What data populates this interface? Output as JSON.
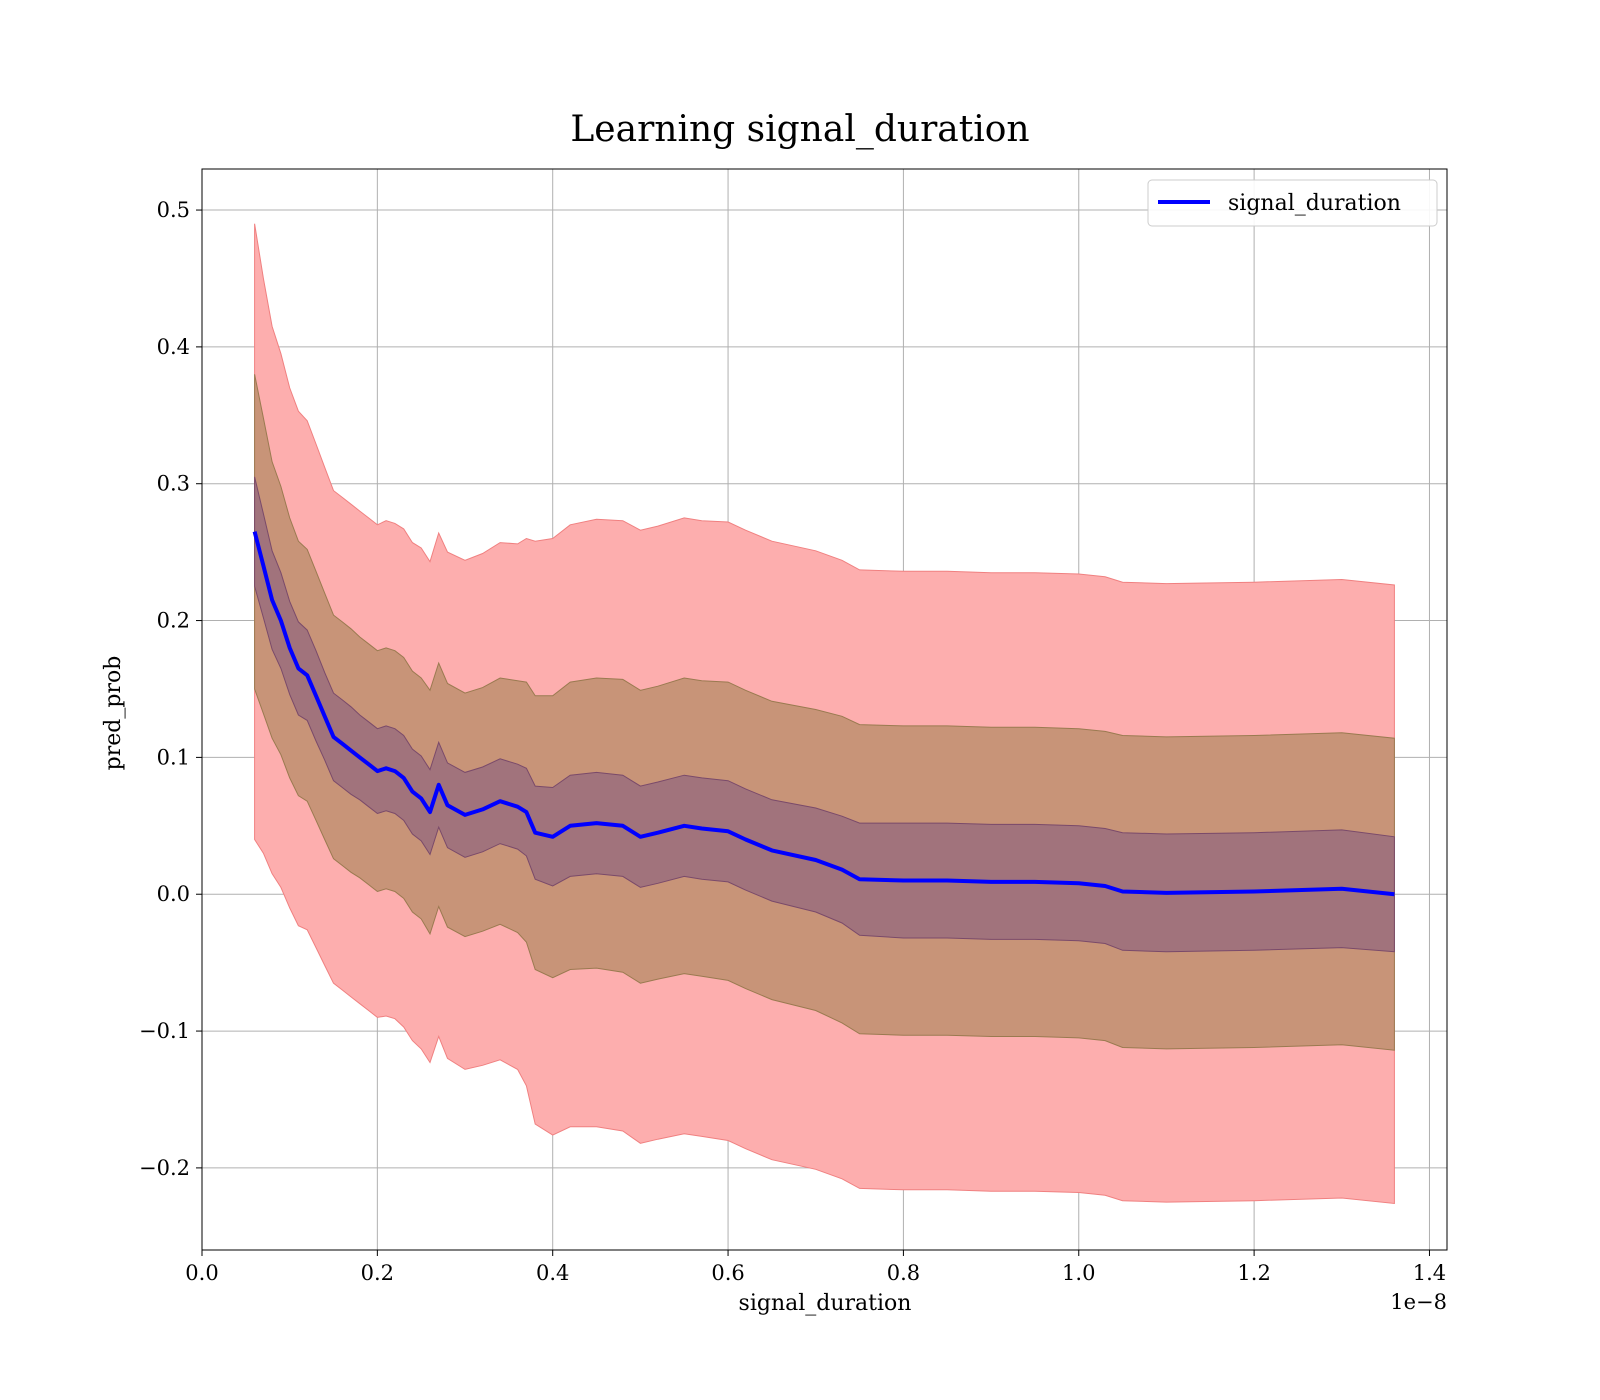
{
  "chart_data": {
    "type": "line",
    "title": "Learning signal_duration",
    "xlabel": "signal_duration",
    "ylabel": "pred_prob",
    "x_offset_label": "1e−8",
    "xlim": [
      0.0,
      1.42
    ],
    "ylim": [
      -0.26,
      0.53
    ],
    "x_ticks": [
      0.0,
      0.2,
      0.4,
      0.6,
      0.8,
      1.0,
      1.2,
      1.4
    ],
    "x_tick_labels": [
      "0.0",
      "0.2",
      "0.4",
      "0.6",
      "0.8",
      "1.0",
      "1.2",
      "1.4"
    ],
    "y_ticks": [
      -0.2,
      -0.1,
      0.0,
      0.1,
      0.2,
      0.3,
      0.4,
      0.5
    ],
    "y_tick_labels": [
      "−0.2",
      "−0.1",
      "0.0",
      "0.1",
      "0.2",
      "0.3",
      "0.4",
      "0.5"
    ],
    "grid": true,
    "legend_position": "top-right",
    "series": [
      {
        "name": "signal_duration",
        "color": "#0000ff",
        "x": [
          0.06,
          0.07,
          0.08,
          0.09,
          0.1,
          0.11,
          0.12,
          0.13,
          0.14,
          0.15,
          0.16,
          0.17,
          0.18,
          0.19,
          0.2,
          0.21,
          0.22,
          0.23,
          0.24,
          0.25,
          0.26,
          0.27,
          0.28,
          0.3,
          0.32,
          0.34,
          0.36,
          0.37,
          0.38,
          0.4,
          0.42,
          0.45,
          0.48,
          0.5,
          0.52,
          0.55,
          0.57,
          0.6,
          0.62,
          0.65,
          0.7,
          0.73,
          0.75,
          0.8,
          0.85,
          0.9,
          0.95,
          1.0,
          1.03,
          1.05,
          1.1,
          1.2,
          1.3,
          1.36
        ],
        "values": [
          0.265,
          0.24,
          0.215,
          0.2,
          0.18,
          0.165,
          0.16,
          0.145,
          0.13,
          0.115,
          0.11,
          0.105,
          0.1,
          0.095,
          0.09,
          0.092,
          0.09,
          0.085,
          0.075,
          0.07,
          0.06,
          0.08,
          0.065,
          0.058,
          0.062,
          0.068,
          0.064,
          0.06,
          0.045,
          0.042,
          0.05,
          0.052,
          0.05,
          0.042,
          0.045,
          0.05,
          0.048,
          0.046,
          0.04,
          0.032,
          0.025,
          0.018,
          0.011,
          0.01,
          0.01,
          0.009,
          0.009,
          0.008,
          0.006,
          0.002,
          0.001,
          0.002,
          0.004,
          0.0
        ],
        "band_1sd": [
          0.04,
          0.038,
          0.036,
          0.035,
          0.034,
          0.034,
          0.033,
          0.033,
          0.032,
          0.032,
          0.032,
          0.032,
          0.031,
          0.031,
          0.031,
          0.031,
          0.031,
          0.031,
          0.031,
          0.031,
          0.031,
          0.031,
          0.031,
          0.031,
          0.031,
          0.031,
          0.031,
          0.032,
          0.034,
          0.036,
          0.037,
          0.037,
          0.037,
          0.037,
          0.037,
          0.037,
          0.037,
          0.037,
          0.037,
          0.037,
          0.038,
          0.039,
          0.041,
          0.042,
          0.042,
          0.042,
          0.042,
          0.042,
          0.042,
          0.043,
          0.043,
          0.043,
          0.043,
          0.042
        ],
        "band_2sd": [
          0.115,
          0.108,
          0.101,
          0.098,
          0.095,
          0.093,
          0.092,
          0.091,
          0.09,
          0.089,
          0.089,
          0.089,
          0.088,
          0.088,
          0.088,
          0.088,
          0.088,
          0.088,
          0.088,
          0.088,
          0.089,
          0.089,
          0.089,
          0.089,
          0.089,
          0.09,
          0.092,
          0.095,
          0.1,
          0.103,
          0.105,
          0.106,
          0.107,
          0.107,
          0.107,
          0.108,
          0.108,
          0.109,
          0.109,
          0.109,
          0.11,
          0.112,
          0.113,
          0.113,
          0.113,
          0.113,
          0.113,
          0.113,
          0.113,
          0.114,
          0.114,
          0.114,
          0.114,
          0.114
        ],
        "band_3sd": [
          0.225,
          0.21,
          0.2,
          0.195,
          0.19,
          0.188,
          0.186,
          0.184,
          0.182,
          0.18,
          0.18,
          0.18,
          0.18,
          0.18,
          0.18,
          0.181,
          0.181,
          0.182,
          0.182,
          0.183,
          0.183,
          0.184,
          0.185,
          0.186,
          0.187,
          0.189,
          0.192,
          0.2,
          0.213,
          0.218,
          0.22,
          0.222,
          0.223,
          0.224,
          0.224,
          0.225,
          0.225,
          0.226,
          0.226,
          0.226,
          0.226,
          0.226,
          0.226,
          0.226,
          0.226,
          0.226,
          0.226,
          0.226,
          0.226,
          0.226,
          0.226,
          0.226,
          0.226,
          0.226
        ]
      }
    ],
    "band_colors": {
      "outer": "#fdaeae",
      "middle": "#c89478",
      "inner": "#a1737c",
      "outer_edge": "#f08080",
      "middle_edge": "#9a7a50",
      "inner_edge": "#7a4a6a"
    }
  }
}
